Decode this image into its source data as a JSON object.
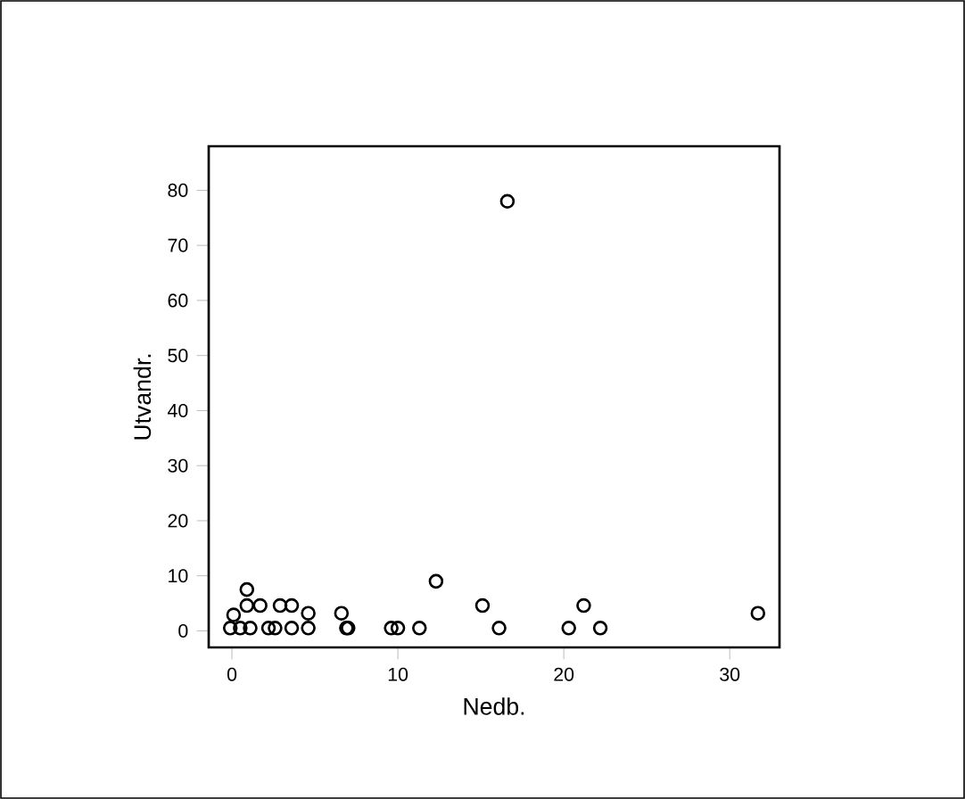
{
  "chart_data": {
    "type": "scatter",
    "xlabel": "Nedb.",
    "ylabel": "Utvandr.",
    "marker": "circle",
    "color": "#000000",
    "x": [
      -0.1,
      0.5,
      0.1,
      0.9,
      0.9,
      1.7,
      1.1,
      2.2,
      2.6,
      2.9,
      3.6,
      3.6,
      4.6,
      4.6,
      6.6,
      6.9,
      7.0,
      9.6,
      10.0,
      11.3,
      12.3,
      15.1,
      16.1,
      16.6,
      20.3,
      21.2,
      22.2,
      31.7
    ],
    "values": [
      0.5,
      0.5,
      2.9,
      7.5,
      4.6,
      4.6,
      0.5,
      0.5,
      0.5,
      4.6,
      4.6,
      0.5,
      3.2,
      0.5,
      3.2,
      0.5,
      0.5,
      0.5,
      0.5,
      0.5,
      9,
      4.6,
      0.5,
      78,
      0.5,
      4.6,
      0.5,
      3.2
    ],
    "xlim": [
      -1.4,
      33
    ],
    "ylim": [
      -3,
      88
    ],
    "xticks": [
      0,
      10,
      20,
      30
    ],
    "yticks": [
      0,
      10,
      20,
      30,
      40,
      50,
      60,
      70,
      80
    ]
  }
}
